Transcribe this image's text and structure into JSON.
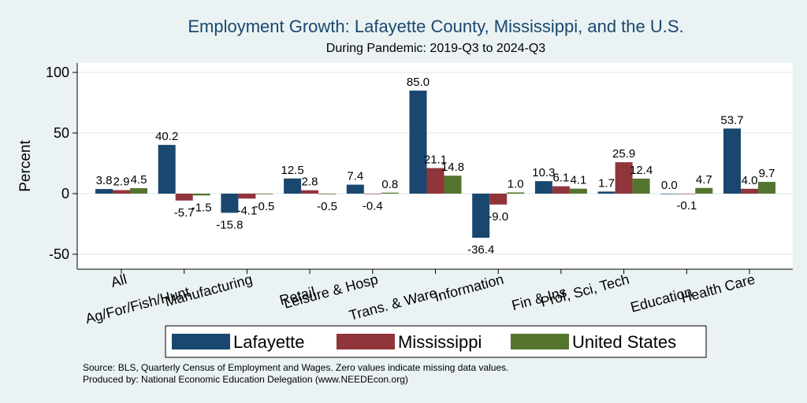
{
  "chart_data": {
    "type": "bar",
    "title": "Employment Growth: Lafayette County, Mississippi, and the U.S.",
    "subtitle": "During Pandemic: 2019-Q3 to 2024-Q3",
    "xlabel": "",
    "ylabel": "Percent",
    "ylim": [
      -60,
      110
    ],
    "yticks": [
      -50,
      0,
      50,
      100
    ],
    "grid": true,
    "legend_position": "bottom",
    "categories": [
      "All",
      "Ag/For/Fish/Hunt",
      "Manufacturing",
      "Retail",
      "Leisure & Hosp",
      "Trans. & Ware.",
      "Information",
      "Fin & Ins",
      "Prof, Sci, Tech",
      "Education",
      "Health Care"
    ],
    "series": [
      {
        "name": "Lafayette",
        "color": "#1a476f",
        "values": [
          3.8,
          40.2,
          -15.8,
          12.5,
          7.4,
          85.0,
          -36.4,
          10.3,
          1.7,
          0.0,
          53.7
        ]
      },
      {
        "name": "Mississippi",
        "color": "#90353b",
        "values": [
          2.9,
          -5.7,
          -4.1,
          2.8,
          -0.4,
          21.1,
          -9.0,
          6.1,
          25.9,
          -0.1,
          4.0
        ]
      },
      {
        "name": "United States",
        "color": "#55752f",
        "values": [
          4.5,
          -1.5,
          -0.5,
          -0.5,
          0.8,
          14.8,
          1.0,
          4.1,
          12.4,
          4.7,
          9.7
        ]
      }
    ]
  },
  "footer": {
    "source": "Source: BLS, Quarterly Census of Employment and Wages. Zero values indicate missing data values.",
    "produced": "Produced by: National Economic Education Delegation (www.NEEDEcon.org)"
  }
}
